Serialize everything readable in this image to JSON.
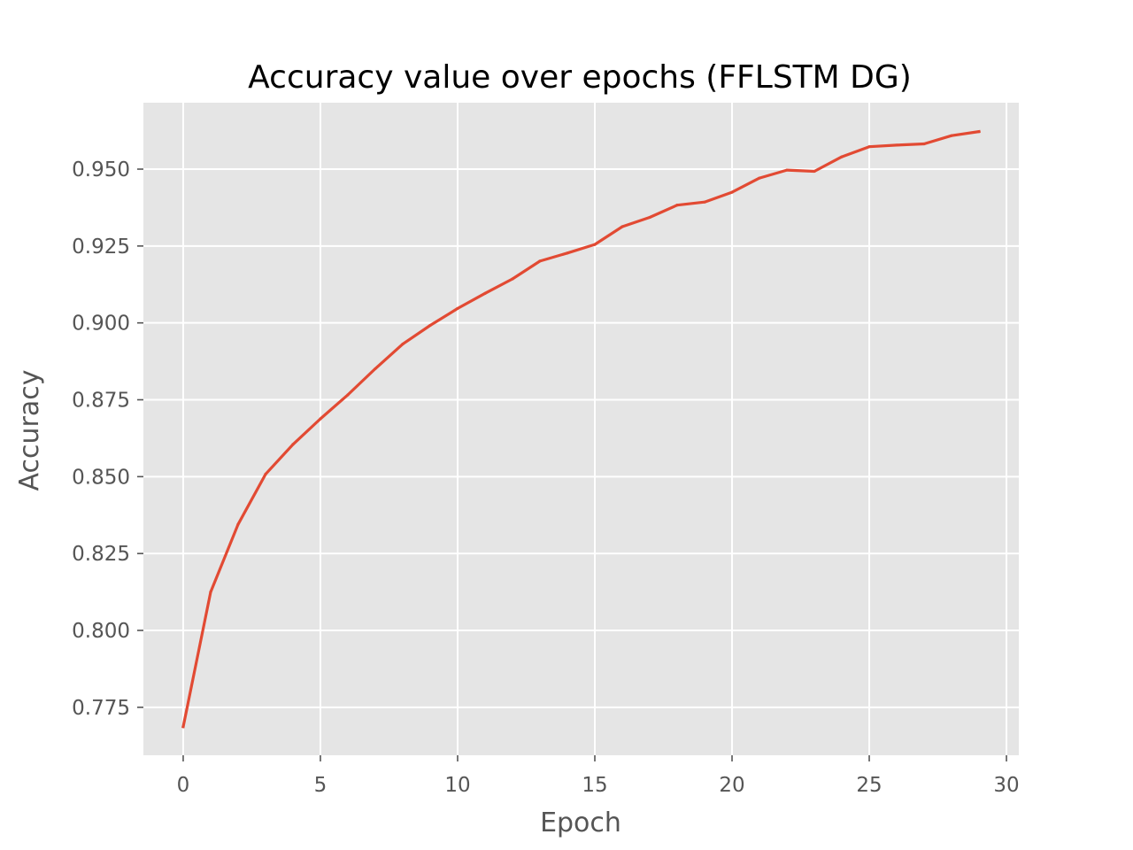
{
  "chart_data": {
    "type": "line",
    "title": "Accuracy value over epochs (FFLSTM DG)",
    "xlabel": "Epoch",
    "ylabel": "Accuracy",
    "xlim": [
      -1.45,
      30.45
    ],
    "ylim": [
      0.7594,
      0.9716
    ],
    "xticks": [
      0,
      5,
      10,
      15,
      20,
      25,
      30
    ],
    "xtick_labels": [
      "0",
      "5",
      "10",
      "15",
      "20",
      "25",
      "30"
    ],
    "yticks": [
      0.775,
      0.8,
      0.825,
      0.85,
      0.875,
      0.9,
      0.925,
      0.95
    ],
    "ytick_labels": [
      "0.775",
      "0.800",
      "0.825",
      "0.850",
      "0.875",
      "0.900",
      "0.925",
      "0.950"
    ],
    "grid": true,
    "colors": {
      "background": "#e5e5e5",
      "grid": "#ffffff",
      "line": "#e24a33"
    },
    "series": [
      {
        "x": [
          0,
          1,
          2,
          3,
          4,
          5,
          6,
          7,
          8,
          9,
          10,
          11,
          12,
          13,
          14,
          15,
          16,
          17,
          18,
          19,
          20,
          21,
          22,
          23,
          24,
          25,
          26,
          27,
          28,
          29
        ],
        "y": [
          0.7687,
          0.8125,
          0.8345,
          0.8508,
          0.8605,
          0.8688,
          0.8766,
          0.8851,
          0.8931,
          0.8992,
          0.9047,
          0.9096,
          0.9143,
          0.9201,
          0.9227,
          0.9255,
          0.9313,
          0.9343,
          0.9383,
          0.9393,
          0.9425,
          0.9471,
          0.9497,
          0.9493,
          0.954,
          0.9573,
          0.9578,
          0.9582,
          0.9609,
          0.9622
        ]
      }
    ]
  }
}
